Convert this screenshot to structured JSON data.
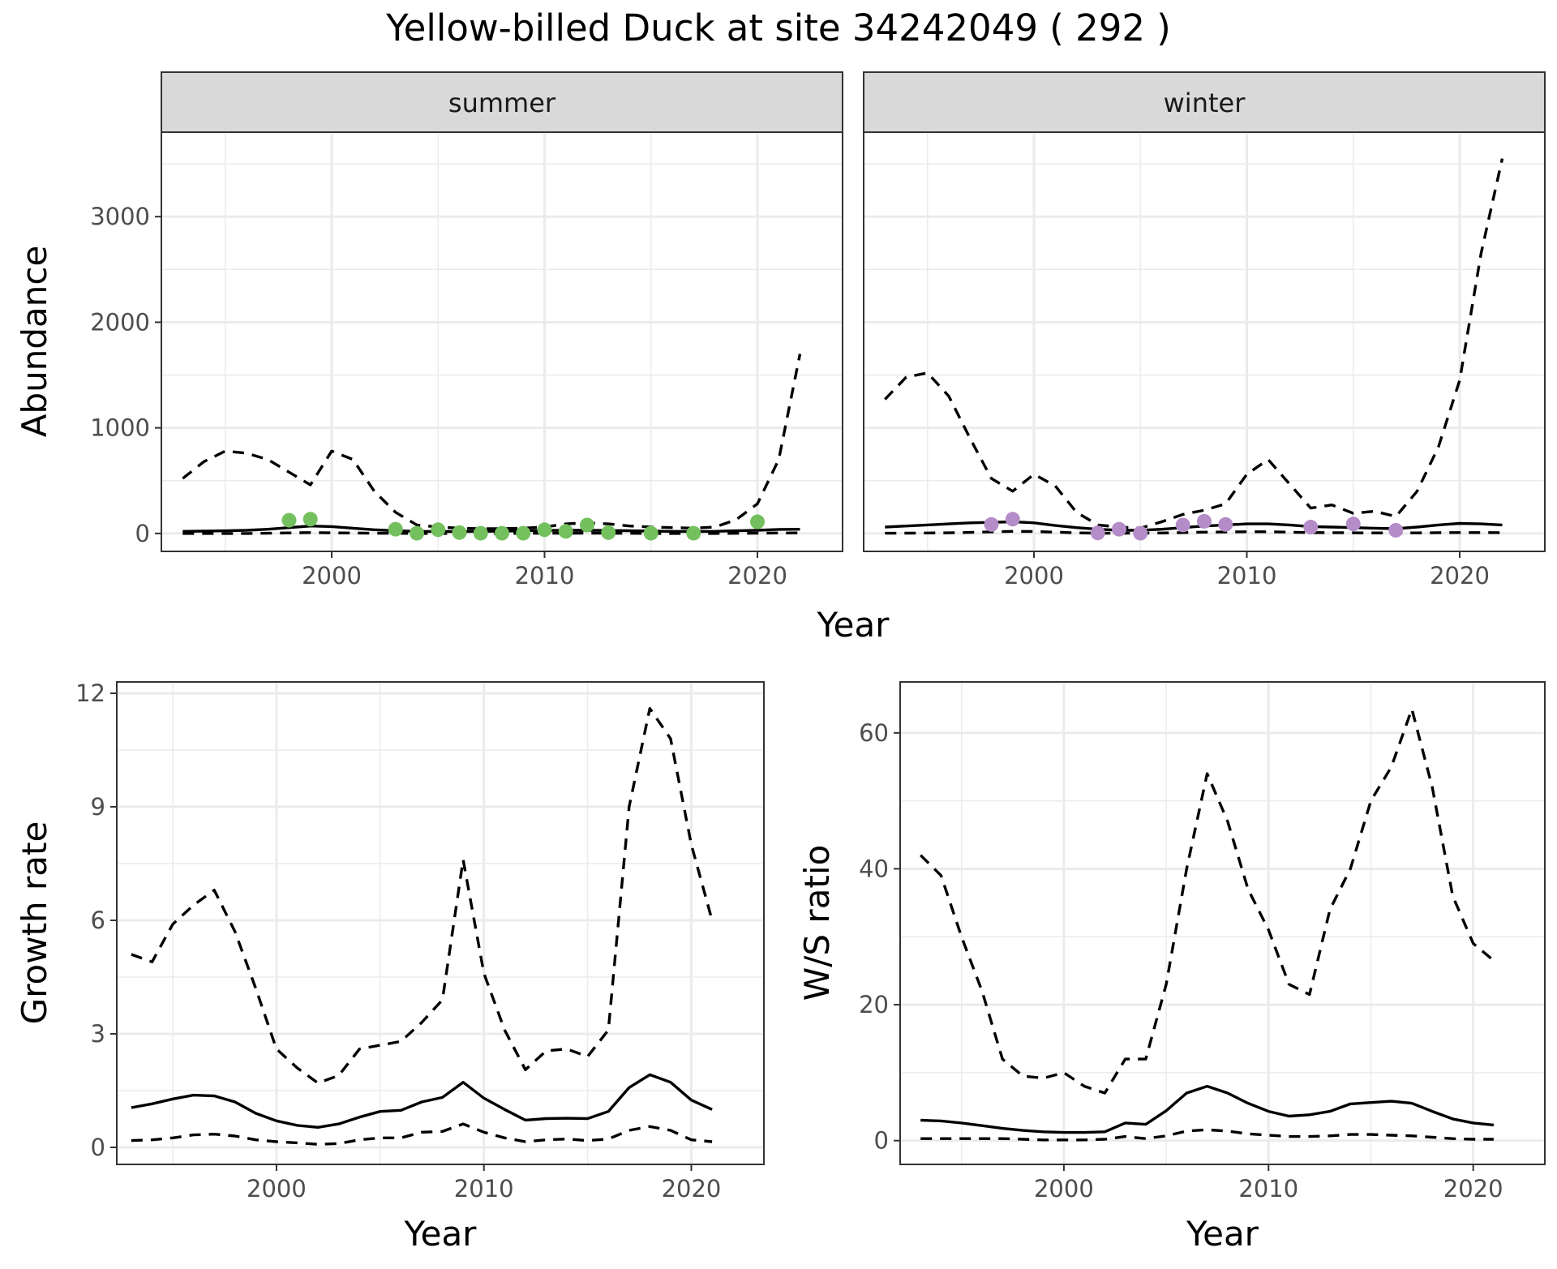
{
  "title": "Yellow-billed Duck at site 34242049 ( 292 )",
  "colors": {
    "summer_points": "#74c05e",
    "winter_points": "#b48cc8",
    "lines": "#000000",
    "strip_fill": "#d9d9d9",
    "grid": "#ebebeb",
    "panel_border": "#333333"
  },
  "chart_data": [
    {
      "type": "line",
      "panel": "top-faceted",
      "facets": [
        "summer",
        "winter"
      ],
      "xlabel": "Year",
      "ylabel": "Abundance",
      "xlim": [
        1992,
        2024
      ],
      "ylim": [
        -170,
        3800
      ],
      "xticks": [
        2000,
        2010,
        2020
      ],
      "yticks": [
        0,
        1000,
        2000,
        3000
      ],
      "grid": true,
      "series": [
        {
          "facet": "summer",
          "x": [
            1993,
            1994,
            1995,
            1996,
            1997,
            1998,
            1999,
            2000,
            2001,
            2002,
            2003,
            2004,
            2005,
            2006,
            2007,
            2008,
            2009,
            2010,
            2011,
            2012,
            2013,
            2014,
            2015,
            2016,
            2017,
            2018,
            2019,
            2020,
            2021,
            2022
          ],
          "mean": [
            20,
            22,
            25,
            30,
            40,
            55,
            70,
            65,
            50,
            35,
            25,
            20,
            18,
            18,
            20,
            22,
            25,
            28,
            30,
            30,
            28,
            25,
            22,
            20,
            18,
            20,
            25,
            30,
            38,
            40
          ],
          "upper": [
            520,
            680,
            780,
            760,
            700,
            580,
            460,
            780,
            700,
            400,
            200,
            80,
            60,
            50,
            45,
            45,
            50,
            60,
            90,
            100,
            90,
            70,
            60,
            55,
            50,
            60,
            130,
            280,
            700,
            1700
          ],
          "lower": [
            0,
            0,
            0,
            0,
            2,
            5,
            8,
            6,
            4,
            2,
            1,
            0,
            0,
            0,
            0,
            0,
            1,
            2,
            3,
            3,
            2,
            1,
            0,
            0,
            0,
            0,
            1,
            2,
            4,
            5
          ]
        },
        {
          "facet": "winter",
          "x": [
            1993,
            1994,
            1995,
            1996,
            1997,
            1998,
            1999,
            2000,
            2001,
            2002,
            2003,
            2004,
            2005,
            2006,
            2007,
            2008,
            2009,
            2010,
            2011,
            2012,
            2013,
            2014,
            2015,
            2016,
            2017,
            2018,
            2019,
            2020,
            2021,
            2022
          ],
          "mean": [
            60,
            70,
            80,
            90,
            100,
            105,
            110,
            100,
            75,
            55,
            40,
            30,
            30,
            40,
            55,
            70,
            80,
            90,
            90,
            80,
            65,
            60,
            55,
            50,
            45,
            60,
            80,
            95,
            90,
            80
          ],
          "upper": [
            1270,
            1480,
            1520,
            1300,
            900,
            520,
            400,
            560,
            450,
            200,
            80,
            60,
            50,
            110,
            180,
            220,
            280,
            560,
            700,
            470,
            240,
            270,
            190,
            210,
            160,
            400,
            820,
            1450,
            2650,
            3550
          ],
          "lower": [
            2,
            3,
            4,
            6,
            10,
            15,
            20,
            18,
            12,
            6,
            3,
            2,
            2,
            4,
            8,
            12,
            14,
            16,
            16,
            12,
            8,
            7,
            6,
            5,
            4,
            5,
            7,
            8,
            8,
            7
          ]
        }
      ],
      "points": [
        {
          "facet": "summer",
          "x": [
            1998,
            1999,
            2003,
            2004,
            2005,
            2006,
            2007,
            2008,
            2009,
            2010,
            2011,
            2012,
            2013,
            2015,
            2017,
            2020
          ],
          "y": [
            125,
            135,
            40,
            2,
            35,
            8,
            2,
            2,
            2,
            35,
            20,
            80,
            8,
            2,
            2,
            110
          ]
        },
        {
          "facet": "winter",
          "x": [
            1998,
            1999,
            2003,
            2004,
            2005,
            2007,
            2008,
            2009,
            2013,
            2015,
            2017
          ],
          "y": [
            85,
            135,
            5,
            40,
            2,
            80,
            115,
            85,
            60,
            90,
            30
          ]
        }
      ]
    },
    {
      "type": "line",
      "panel": "bottom-left",
      "xlabel": "Year",
      "ylabel": "Growth rate",
      "xlim": [
        1992.3,
        2023.5
      ],
      "ylim": [
        -0.45,
        12.3
      ],
      "xticks": [
        2000,
        2010,
        2020
      ],
      "yticks": [
        0,
        3,
        6,
        9,
        12
      ],
      "grid": true,
      "x": [
        1993,
        1994,
        1995,
        1996,
        1997,
        1998,
        1999,
        2000,
        2001,
        2002,
        2003,
        2004,
        2005,
        2006,
        2007,
        2008,
        2009,
        2010,
        2011,
        2012,
        2013,
        2014,
        2015,
        2016,
        2017,
        2018,
        2019,
        2020,
        2021
      ],
      "mean": [
        1.05,
        1.15,
        1.28,
        1.38,
        1.36,
        1.2,
        0.9,
        0.7,
        0.58,
        0.53,
        0.62,
        0.8,
        0.95,
        0.98,
        1.2,
        1.32,
        1.72,
        1.3,
        1.0,
        0.72,
        0.76,
        0.77,
        0.76,
        0.95,
        1.58,
        1.92,
        1.72,
        1.25,
        1.0
      ],
      "upper": [
        5.1,
        4.9,
        5.9,
        6.4,
        6.8,
        5.7,
        4.2,
        2.6,
        2.1,
        1.7,
        1.9,
        2.6,
        2.7,
        2.8,
        3.3,
        3.9,
        7.6,
        4.6,
        3.1,
        2.05,
        2.55,
        2.6,
        2.4,
        3.1,
        9.0,
        11.6,
        10.8,
        8.0,
        6.0
      ],
      "lower": [
        0.18,
        0.2,
        0.25,
        0.33,
        0.35,
        0.3,
        0.2,
        0.15,
        0.12,
        0.08,
        0.1,
        0.2,
        0.25,
        0.25,
        0.4,
        0.42,
        0.62,
        0.4,
        0.25,
        0.15,
        0.2,
        0.22,
        0.18,
        0.22,
        0.45,
        0.55,
        0.45,
        0.2,
        0.15
      ]
    },
    {
      "type": "line",
      "panel": "bottom-right",
      "xlabel": "Year",
      "ylabel": "W/S ratio",
      "xlim": [
        1992,
        2023.5
      ],
      "ylim": [
        -3.5,
        67.5
      ],
      "xticks": [
        2000,
        2010,
        2020
      ],
      "yticks": [
        0,
        20,
        40,
        60
      ],
      "grid": true,
      "x": [
        1993,
        1994,
        1995,
        1996,
        1997,
        1998,
        1999,
        2000,
        2001,
        2002,
        2003,
        2004,
        2005,
        2006,
        2007,
        2008,
        2009,
        2010,
        2011,
        2012,
        2013,
        2014,
        2015,
        2016,
        2017,
        2018,
        2019,
        2020,
        2021
      ],
      "mean": [
        3.0,
        2.9,
        2.6,
        2.2,
        1.8,
        1.5,
        1.3,
        1.2,
        1.2,
        1.3,
        2.6,
        2.4,
        4.4,
        7.0,
        8.0,
        7.0,
        5.5,
        4.3,
        3.6,
        3.8,
        4.3,
        5.4,
        5.6,
        5.8,
        5.5,
        4.3,
        3.2,
        2.6,
        2.3
      ],
      "upper": [
        42,
        39,
        30,
        22,
        12,
        9.5,
        9.2,
        10,
        8,
        7,
        12,
        12,
        23,
        40,
        54,
        47,
        37,
        31,
        23,
        21.5,
        34,
        40,
        50,
        55,
        63.5,
        52,
        36,
        29,
        26.5
      ],
      "lower": [
        0.3,
        0.3,
        0.3,
        0.3,
        0.3,
        0.2,
        0.1,
        0.1,
        0.1,
        0.2,
        0.6,
        0.3,
        0.7,
        1.4,
        1.6,
        1.4,
        1.0,
        0.8,
        0.6,
        0.6,
        0.7,
        0.9,
        0.9,
        0.8,
        0.7,
        0.5,
        0.3,
        0.2,
        0.2
      ]
    }
  ]
}
